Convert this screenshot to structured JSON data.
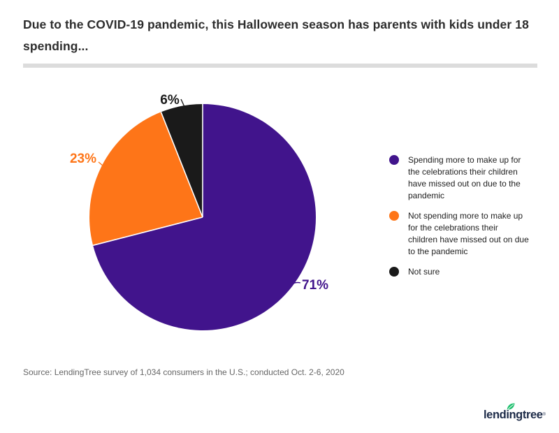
{
  "title": "Due to the COVID-19 pandemic, this Halloween season has parents with kids under 18 spending...",
  "chart_data": {
    "type": "pie",
    "title": "Due to the COVID-19 pandemic, this Halloween season has parents with kids under 18 spending...",
    "start_angle_deg": 0,
    "direction": "clockwise",
    "legend_position": "right",
    "slices": [
      {
        "label": "Spending more to make up for the celebrations their children have missed out on due to the pandemic",
        "value": 71,
        "display": "71%",
        "color": "#41148c"
      },
      {
        "label": "Not spending more to make up for the celebrations their children have missed out on due to the pandemic",
        "value": 23,
        "display": "23%",
        "color": "#fe7518"
      },
      {
        "label": "Not sure",
        "value": 6,
        "display": "6%",
        "color": "#1a1a1a"
      }
    ]
  },
  "source": "Source: LendingTree survey of 1,034 consumers in the U.S.; conducted Oct. 2-6, 2020",
  "logo": {
    "text": "lendingtree",
    "mark": "®",
    "text_color": "#1d2b48",
    "leaf_color": "#1fc06e"
  }
}
